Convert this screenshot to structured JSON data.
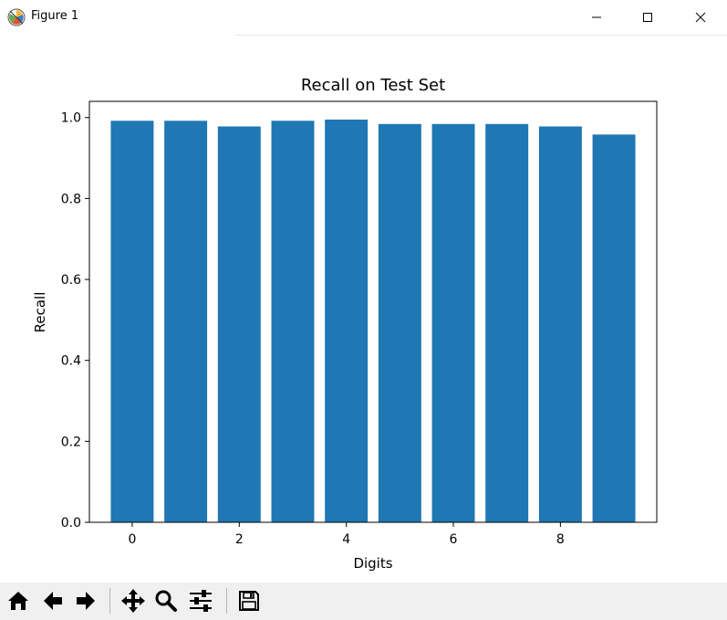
{
  "window": {
    "title": "Figure 1",
    "icons": {
      "app": "matplotlib-logo-icon",
      "minimize": "minimize-icon",
      "maximize": "maximize-icon",
      "close": "close-icon"
    }
  },
  "toolbar": {
    "buttons": [
      {
        "name": "home-icon"
      },
      {
        "name": "back-arrow-icon"
      },
      {
        "name": "forward-arrow-icon"
      },
      {
        "name": "pan-icon"
      },
      {
        "name": "zoom-icon"
      },
      {
        "name": "configure-subplots-icon"
      },
      {
        "name": "save-icon"
      }
    ]
  },
  "chart_data": {
    "type": "bar",
    "title": "Recall on Test Set",
    "xlabel": "Digits",
    "ylabel": "Recall",
    "categories": [
      0,
      1,
      2,
      3,
      4,
      5,
      6,
      7,
      8,
      9
    ],
    "values": [
      0.992,
      0.992,
      0.978,
      0.992,
      0.995,
      0.984,
      0.984,
      0.984,
      0.978,
      0.958
    ],
    "xlim": [
      -0.8,
      9.8
    ],
    "ylim": [
      0,
      1.04
    ],
    "xticks": [
      0,
      2,
      4,
      6,
      8
    ],
    "xtick_labels": [
      "0",
      "2",
      "4",
      "6",
      "8"
    ],
    "yticks": [
      0,
      0.2,
      0.4,
      0.6,
      0.8,
      1.0
    ],
    "ytick_labels": [
      "0.0",
      "0.2",
      "0.4",
      "0.6",
      "0.8",
      "1.0"
    ],
    "bar_color": "#1f77b4",
    "grid": false,
    "legend": "none"
  }
}
